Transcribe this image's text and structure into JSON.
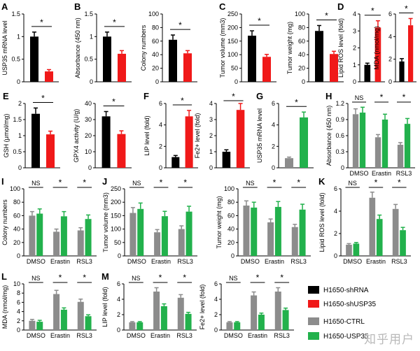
{
  "colors": {
    "black": "#000000",
    "red": "#f01919",
    "gray": "#8c8c8c",
    "green": "#22b14c"
  },
  "legend": [
    {
      "text": "H1650-shRNA",
      "color": "#000000"
    },
    {
      "text": "H1650-shUSP35",
      "color": "#f01919"
    },
    {
      "text": "H1650-CTRL",
      "color": "#8c8c8c"
    },
    {
      "text": "H1650-USP35",
      "color": "#22b14c"
    }
  ],
  "watermark": "知乎用户",
  "chart_data": [
    {
      "id": "A",
      "panel": "A",
      "type": "bar",
      "ylabel": "USP35 mRNA level",
      "ylim": [
        0,
        1.5
      ],
      "ticks": [
        "0",
        "0.5",
        "1",
        "1.5"
      ],
      "tickvals": [
        0,
        0.5,
        1,
        1.5
      ],
      "bars": [
        {
          "value": 1.0,
          "err": 0.1,
          "color": "black"
        },
        {
          "value": 0.23,
          "err": 0.04,
          "color": "red"
        }
      ],
      "sig": [
        {
          "text": "*",
          "from": 0,
          "to": 1
        }
      ]
    },
    {
      "id": "B1",
      "panel": "B",
      "type": "bar",
      "ylabel": "Absorbance (450 nm)",
      "ylim": [
        0,
        1.5
      ],
      "ticks": [
        "0",
        "0.5",
        "1",
        "1.5"
      ],
      "tickvals": [
        0,
        0.5,
        1,
        1.5
      ],
      "bars": [
        {
          "value": 1.0,
          "err": 0.1,
          "color": "black"
        },
        {
          "value": 0.62,
          "err": 0.07,
          "color": "red"
        }
      ],
      "sig": [
        {
          "text": "*",
          "from": 0,
          "to": 1
        }
      ]
    },
    {
      "id": "B2",
      "panel": "",
      "type": "bar",
      "ylabel": "Colony numbers",
      "ylim": [
        0,
        100
      ],
      "ticks": [
        "0",
        "20",
        "40",
        "60",
        "80",
        "100"
      ],
      "tickvals": [
        0,
        20,
        40,
        60,
        80,
        100
      ],
      "bars": [
        {
          "value": 62,
          "err": 7,
          "color": "black"
        },
        {
          "value": 42,
          "err": 4,
          "color": "red"
        }
      ],
      "sig": [
        {
          "text": "*",
          "from": 0,
          "to": 1
        }
      ]
    },
    {
      "id": "C1",
      "panel": "C",
      "type": "bar",
      "ylabel": "Tumor volume (mm3)",
      "ylim": [
        0,
        250
      ],
      "ticks": [
        "0",
        "50",
        "100",
        "150",
        "200",
        "250"
      ],
      "tickvals": [
        0,
        50,
        100,
        150,
        200,
        250
      ],
      "bars": [
        {
          "value": 170,
          "err": 18,
          "color": "black"
        },
        {
          "value": 92,
          "err": 9,
          "color": "red"
        }
      ],
      "sig": [
        {
          "text": "*",
          "from": 0,
          "to": 1
        }
      ]
    },
    {
      "id": "C2",
      "panel": "",
      "type": "bar",
      "ylabel": "Tumor weight (mg)",
      "ylim": [
        0,
        100
      ],
      "ticks": [
        "0",
        "20",
        "40",
        "60",
        "80",
        "100"
      ],
      "tickvals": [
        0,
        20,
        40,
        60,
        80,
        100
      ],
      "bars": [
        {
          "value": 75,
          "err": 8,
          "color": "black"
        },
        {
          "value": 41,
          "err": 4,
          "color": "red"
        }
      ],
      "sig": [
        {
          "text": "*",
          "from": 0,
          "to": 1
        }
      ]
    },
    {
      "id": "D1",
      "panel": "D",
      "type": "bar",
      "ylabel": "Lipid ROS level (fold)",
      "ylim": [
        0,
        4
      ],
      "ticks": [
        "0",
        "1",
        "2",
        "3",
        "4"
      ],
      "tickvals": [
        0,
        1,
        2,
        3,
        4
      ],
      "bars": [
        {
          "value": 1.0,
          "err": 0.1,
          "color": "black"
        },
        {
          "value": 3.2,
          "err": 0.4,
          "color": "red"
        }
      ],
      "sig": [
        {
          "text": "*",
          "from": 0,
          "to": 1
        }
      ]
    },
    {
      "id": "D2",
      "panel": "",
      "type": "bar",
      "ylabel": "MDA (nmol/mg)",
      "ylim": [
        0,
        6
      ],
      "ticks": [
        "0",
        "2",
        "4",
        "6"
      ],
      "tickvals": [
        0,
        2,
        4,
        6
      ],
      "bars": [
        {
          "value": 1.8,
          "err": 0.25,
          "color": "black"
        },
        {
          "value": 5.0,
          "err": 0.6,
          "color": "red"
        }
      ],
      "sig": [
        {
          "text": "*",
          "from": 0,
          "to": 1
        }
      ]
    },
    {
      "id": "E1",
      "panel": "E",
      "type": "bar",
      "ylabel": "GSH (μmol/mg)",
      "ylim": [
        0,
        2
      ],
      "ticks": [
        "0",
        "0.5",
        "1",
        "1.5",
        "2"
      ],
      "tickvals": [
        0,
        0.5,
        1,
        1.5,
        2
      ],
      "bars": [
        {
          "value": 1.68,
          "err": 0.18,
          "color": "black"
        },
        {
          "value": 1.04,
          "err": 0.1,
          "color": "red"
        }
      ],
      "sig": [
        {
          "text": "*",
          "from": 0,
          "to": 1
        }
      ]
    },
    {
      "id": "E2",
      "panel": "",
      "type": "bar",
      "ylabel": "GPX4 activity (U/g)",
      "ylim": [
        0,
        40
      ],
      "ticks": [
        "0",
        "10",
        "20",
        "30",
        "40"
      ],
      "tickvals": [
        0,
        10,
        20,
        30,
        40
      ],
      "bars": [
        {
          "value": 32,
          "err": 3,
          "color": "black"
        },
        {
          "value": 21,
          "err": 2,
          "color": "red"
        }
      ],
      "sig": [
        {
          "text": "*",
          "from": 0,
          "to": 1
        }
      ]
    },
    {
      "id": "F1",
      "panel": "F",
      "type": "bar",
      "ylabel": "LIP level (fold)",
      "ylim": [
        0,
        6
      ],
      "ticks": [
        "0",
        "2",
        "4",
        "6"
      ],
      "tickvals": [
        0,
        2,
        4,
        6
      ],
      "bars": [
        {
          "value": 1.0,
          "err": 0.15,
          "color": "black"
        },
        {
          "value": 4.8,
          "err": 0.55,
          "color": "red"
        }
      ],
      "sig": [
        {
          "text": "*",
          "from": 0,
          "to": 1
        }
      ]
    },
    {
      "id": "F2",
      "panel": "",
      "type": "bar",
      "ylabel": "Fe2+ level (fold)",
      "ylim": [
        0,
        4
      ],
      "ticks": [
        "0",
        "1",
        "2",
        "3",
        "4"
      ],
      "tickvals": [
        0,
        1,
        2,
        3,
        4
      ],
      "bars": [
        {
          "value": 1.0,
          "err": 0.12,
          "color": "black"
        },
        {
          "value": 3.6,
          "err": 0.4,
          "color": "red"
        }
      ],
      "sig": [
        {
          "text": "*",
          "from": 0,
          "to": 1
        }
      ]
    },
    {
      "id": "G",
      "panel": "G",
      "type": "bar",
      "ylabel": "USP35 mRNA level",
      "ylim": [
        0,
        6
      ],
      "ticks": [
        "0",
        "2",
        "4",
        "6"
      ],
      "tickvals": [
        0,
        2,
        4,
        6
      ],
      "bars": [
        {
          "value": 0.9,
          "err": 0.1,
          "color": "gray"
        },
        {
          "value": 4.7,
          "err": 0.5,
          "color": "green"
        }
      ],
      "sig": [
        {
          "text": "*",
          "from": 0,
          "to": 1
        }
      ]
    },
    {
      "id": "H",
      "panel": "H",
      "type": "bar",
      "grouped": true,
      "ylabel": "Absorbance (450 nm)",
      "ylim": [
        0,
        1.2
      ],
      "ticks": [
        "0",
        "0.3",
        "0.6",
        "0.9",
        "1.2"
      ],
      "tickvals": [
        0,
        0.3,
        0.6,
        0.9,
        1.2
      ],
      "categories": [
        "DMSO",
        "Erastin",
        "RSL3"
      ],
      "series": [
        {
          "color": "gray",
          "values": [
            1.0,
            0.57,
            0.43
          ],
          "err": [
            0.1,
            0.05,
            0.04
          ]
        },
        {
          "color": "green",
          "values": [
            1.03,
            0.9,
            0.82
          ],
          "err": [
            0.1,
            0.1,
            0.1
          ]
        }
      ],
      "sig": [
        "NS",
        "*",
        "*"
      ]
    },
    {
      "id": "I",
      "panel": "I",
      "type": "bar",
      "grouped": true,
      "ylabel": "Colony numbers",
      "ylim": [
        0,
        100
      ],
      "ticks": [
        "0",
        "20",
        "40",
        "60",
        "80",
        "100"
      ],
      "tickvals": [
        0,
        20,
        40,
        60,
        80,
        100
      ],
      "categories": [
        "DMSO",
        "Erastin",
        "RSL3"
      ],
      "series": [
        {
          "color": "gray",
          "values": [
            60,
            36,
            38
          ],
          "err": [
            6,
            4,
            4
          ]
        },
        {
          "color": "green",
          "values": [
            63,
            59,
            55
          ],
          "err": [
            7,
            7,
            6
          ]
        }
      ],
      "sig": [
        "NS",
        "*",
        "*"
      ]
    },
    {
      "id": "J1",
      "panel": "J",
      "type": "bar",
      "grouped": true,
      "ylabel": "Tumor volume (mm3)",
      "ylim": [
        0,
        250
      ],
      "ticks": [
        "0",
        "50",
        "100",
        "150",
        "200",
        "250"
      ],
      "tickvals": [
        0,
        50,
        100,
        150,
        200,
        250
      ],
      "categories": [
        "DMSO",
        "Erastin",
        "RSL3"
      ],
      "series": [
        {
          "color": "gray",
          "values": [
            160,
            88,
            100
          ],
          "err": [
            20,
            10,
            12
          ]
        },
        {
          "color": "green",
          "values": [
            175,
            148,
            165
          ],
          "err": [
            22,
            18,
            20
          ]
        }
      ],
      "sig": [
        "NS",
        "*",
        "*"
      ]
    },
    {
      "id": "J2",
      "panel": "",
      "type": "bar",
      "grouped": true,
      "ylabel": "Tumor weight (mg)",
      "ylim": [
        0,
        100
      ],
      "ticks": [
        "0",
        "20",
        "40",
        "60",
        "80",
        "100"
      ],
      "tickvals": [
        0,
        20,
        40,
        60,
        80,
        100
      ],
      "categories": [
        "DMSO",
        "Erastin",
        "RSL3"
      ],
      "series": [
        {
          "color": "gray",
          "values": [
            75,
            50,
            43
          ],
          "err": [
            7,
            5,
            4
          ]
        },
        {
          "color": "green",
          "values": [
            72,
            73,
            69
          ],
          "err": [
            8,
            8,
            8
          ]
        }
      ],
      "sig": [
        "NS",
        "*",
        "*"
      ]
    },
    {
      "id": "K",
      "panel": "K",
      "type": "bar",
      "grouped": true,
      "ylabel": "Lipid ROS level (fold)",
      "ylim": [
        0,
        6
      ],
      "ticks": [
        "0",
        "2",
        "4",
        "6"
      ],
      "tickvals": [
        0,
        2,
        4,
        6
      ],
      "categories": [
        "DMSO",
        "Erastin",
        "RSL3"
      ],
      "series": [
        {
          "color": "gray",
          "values": [
            1.0,
            5.2,
            4.2
          ],
          "err": [
            0.1,
            0.5,
            0.4
          ]
        },
        {
          "color": "green",
          "values": [
            1.1,
            3.3,
            2.3
          ],
          "err": [
            0.1,
            0.35,
            0.25
          ]
        }
      ],
      "sig": [
        "NS",
        "*",
        "*"
      ]
    },
    {
      "id": "L",
      "panel": "L",
      "type": "bar",
      "grouped": true,
      "ylabel": "MDA (nmol/mg)",
      "ylim": [
        0,
        10
      ],
      "ticks": [
        "0",
        "2",
        "4",
        "6",
        "8",
        "10"
      ],
      "tickvals": [
        0,
        2,
        4,
        6,
        8,
        10
      ],
      "categories": [
        "DMSO",
        "Erastin",
        "RSL3"
      ],
      "series": [
        {
          "color": "gray",
          "values": [
            2.0,
            7.8,
            6.1
          ],
          "err": [
            0.3,
            0.8,
            0.6
          ]
        },
        {
          "color": "green",
          "values": [
            1.8,
            4.4,
            3.0
          ],
          "err": [
            0.3,
            0.4,
            0.3
          ]
        }
      ],
      "sig": [
        "NS",
        "*",
        "*"
      ]
    },
    {
      "id": "M1",
      "panel": "M",
      "type": "bar",
      "grouped": true,
      "ylabel": "LIP level (fold)",
      "ylim": [
        0,
        6
      ],
      "ticks": [
        "0",
        "2",
        "4",
        "6"
      ],
      "tickvals": [
        0,
        2,
        4,
        6
      ],
      "categories": [
        "DMSO",
        "Erastin",
        "RSL3"
      ],
      "series": [
        {
          "color": "gray",
          "values": [
            1.0,
            5.0,
            4.2
          ],
          "err": [
            0.1,
            0.5,
            0.4
          ]
        },
        {
          "color": "green",
          "values": [
            1.0,
            3.1,
            2.1
          ],
          "err": [
            0.1,
            0.3,
            0.2
          ]
        }
      ],
      "sig": [
        "NS",
        "*",
        "*"
      ]
    },
    {
      "id": "M2",
      "panel": "",
      "type": "bar",
      "grouped": true,
      "ylabel": "Fe2+ level (fold)",
      "ylim": [
        0,
        6
      ],
      "ticks": [
        "0",
        "2",
        "4",
        "6"
      ],
      "tickvals": [
        0,
        2,
        4,
        6
      ],
      "categories": [
        "DMSO",
        "Erastin",
        "RSL3"
      ],
      "series": [
        {
          "color": "gray",
          "values": [
            1.0,
            4.5,
            5.0
          ],
          "err": [
            0.1,
            0.45,
            0.5
          ]
        },
        {
          "color": "green",
          "values": [
            1.0,
            2.0,
            2.6
          ],
          "err": [
            0.1,
            0.2,
            0.25
          ]
        }
      ],
      "sig": [
        "NS",
        "*",
        "*"
      ]
    }
  ]
}
